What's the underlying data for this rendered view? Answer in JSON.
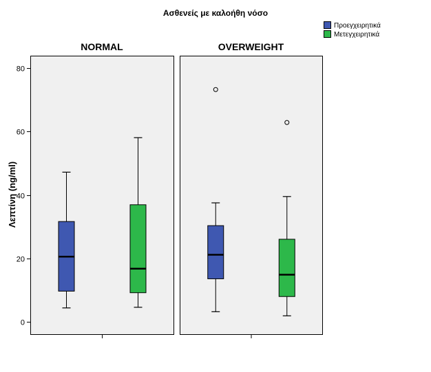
{
  "chart_data": {
    "type": "box",
    "title": "Ασθενείς με καλοήθη νόσο",
    "ylabel": "Λεπτίνη (ng/ml)",
    "xlabel": "",
    "ylim": [
      -4,
      84
    ],
    "yticks": [
      0,
      20,
      40,
      60,
      80
    ],
    "grid": false,
    "legend_position": "top-right",
    "panels": [
      {
        "name": "NORMAL",
        "boxes": [
          {
            "series": "Προεγχειρητικά",
            "whisker_low": 4.3,
            "q1": 9.6,
            "median": 20.5,
            "q3": 31.6,
            "whisker_high": 47.2,
            "outliers": []
          },
          {
            "series": "Μετεγχειρητικά",
            "whisker_low": 4.5,
            "q1": 9.1,
            "median": 16.7,
            "q3": 36.9,
            "whisker_high": 58.1,
            "outliers": []
          }
        ]
      },
      {
        "name": "OVERWEIGHT",
        "boxes": [
          {
            "series": "Προεγχειρητικά",
            "whisker_low": 3.1,
            "q1": 13.5,
            "median": 21.1,
            "q3": 30.3,
            "whisker_high": 37.5,
            "outliers": [
              73.3
            ]
          },
          {
            "series": "Μετεγχειρητικά",
            "whisker_low": 1.8,
            "q1": 7.9,
            "median": 14.8,
            "q3": 26.0,
            "whisker_high": 39.5,
            "outliers": [
              62.9
            ]
          }
        ]
      }
    ],
    "series": [
      {
        "name": "Προεγχειρητικά",
        "color": "#3f58b1"
      },
      {
        "name": "Μετεγχειρητικά",
        "color": "#2db84a"
      }
    ]
  }
}
